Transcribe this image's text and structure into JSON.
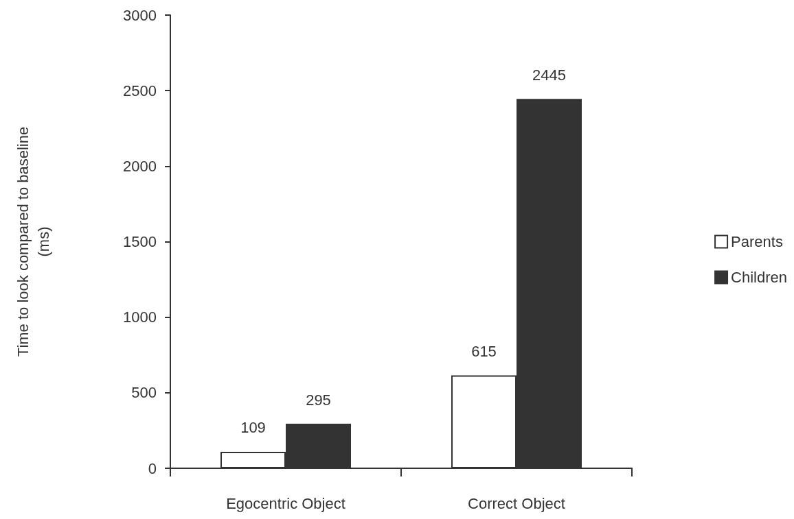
{
  "chart_data": {
    "type": "bar",
    "ylabel": "Time to look compared to baseline (ms)",
    "categories": [
      "Egocentric Object",
      "Correct Object"
    ],
    "series": [
      {
        "name": "Parents",
        "color": "#ffffff",
        "values": [
          109,
          615
        ]
      },
      {
        "name": "Children",
        "color": "#333333",
        "values": [
          295,
          2445
        ]
      }
    ],
    "ylim": [
      0,
      3000
    ],
    "yticks": [
      0,
      500,
      1000,
      1500,
      2000,
      2500,
      3000
    ],
    "grid": false,
    "legend": "right",
    "data_labels": true
  }
}
